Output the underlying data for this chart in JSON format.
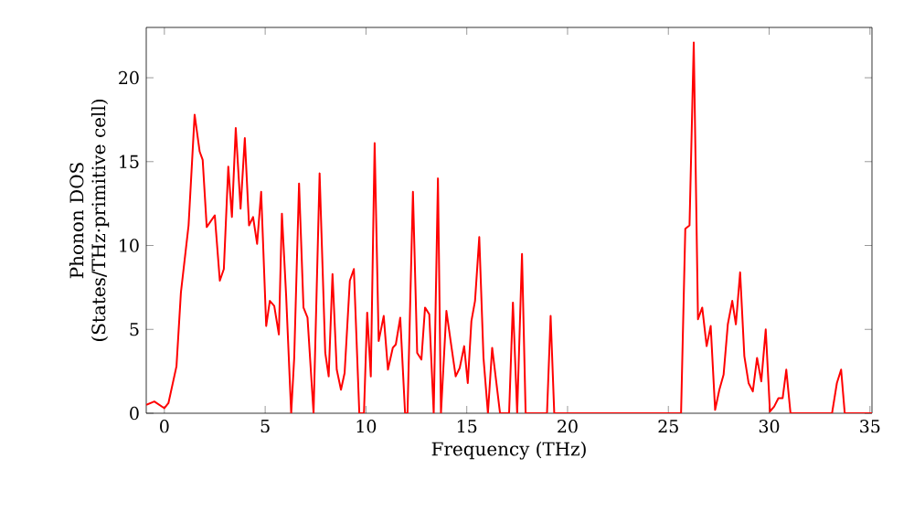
{
  "chart_data": {
    "type": "line",
    "xlabel": "Frequency (THz)",
    "ylabel": "Phonon DOS (States/THz·primitive cell)",
    "xlim": [
      -0.9,
      35.1
    ],
    "ylim": [
      0,
      23
    ],
    "xticks": [
      0,
      5,
      10,
      15,
      20,
      25,
      30,
      35
    ],
    "yticks": [
      0,
      5,
      10,
      15,
      20
    ],
    "series": [
      {
        "color": "#ff0000",
        "x": [
          -0.9,
          -0.5,
          0,
          0.2,
          0.6,
          0.82,
          1.2,
          1.5,
          1.75,
          1.9,
          2.1,
          2.5,
          2.75,
          2.95,
          3.17,
          3.35,
          3.54,
          3.78,
          3.99,
          4.2,
          4.4,
          4.6,
          4.8,
          5.05,
          5.23,
          5.45,
          5.68,
          5.83,
          6.04,
          6.29,
          6.44,
          6.68,
          6.9,
          7.1,
          7.4,
          7.7,
          7.98,
          8.15,
          8.34,
          8.55,
          8.76,
          8.94,
          9.2,
          9.4,
          9.67,
          9.9,
          10.06,
          10.24,
          10.43,
          10.63,
          10.88,
          11.09,
          11.33,
          11.48,
          11.7,
          11.94,
          12.06,
          12.33,
          12.54,
          12.75,
          12.93,
          13.14,
          13.36,
          13.57,
          13.72,
          13.99,
          14.2,
          14.45,
          14.65,
          14.87,
          15.05,
          15.23,
          15.41,
          15.62,
          15.83,
          16.05,
          16.26,
          16.47,
          16.65,
          17.1,
          17.29,
          17.5,
          17.74,
          17.92,
          18.98,
          19.16,
          19.34,
          25.63,
          25.84,
          26.05,
          26.26,
          26.47,
          26.68,
          26.9,
          27.1,
          27.32,
          27.53,
          27.74,
          27.95,
          28.17,
          28.35,
          28.56,
          28.77,
          28.98,
          29.19,
          29.4,
          29.61,
          29.83,
          30.04,
          30.25,
          30.46,
          30.67,
          30.85,
          31.06,
          33.12,
          33.36,
          33.57,
          33.75,
          35.1
        ],
        "values": [
          0.5,
          0.7,
          0.3,
          0.6,
          2.8,
          7.2,
          11.2,
          17.8,
          15.6,
          15.1,
          11.1,
          11.8,
          7.9,
          8.6,
          14.7,
          11.7,
          17.0,
          12.2,
          16.4,
          11.2,
          11.7,
          10.1,
          13.2,
          5.2,
          6.7,
          6.4,
          4.7,
          11.9,
          7.0,
          0,
          3.3,
          13.7,
          6.3,
          5.7,
          0,
          14.3,
          3.6,
          2.2,
          8.3,
          2.6,
          1.4,
          2.4,
          7.9,
          8.6,
          0,
          0,
          6.0,
          2.2,
          16.1,
          4.3,
          5.8,
          2.6,
          3.9,
          4.1,
          5.7,
          0,
          0,
          13.2,
          3.6,
          3.2,
          6.3,
          5.9,
          0,
          14.0,
          0,
          6.1,
          4.3,
          2.2,
          2.7,
          4.0,
          1.8,
          5.5,
          6.7,
          10.5,
          3.3,
          0,
          3.9,
          1.8,
          0,
          0,
          6.6,
          0,
          9.5,
          0,
          0,
          5.8,
          0,
          0,
          11.0,
          11.2,
          22.1,
          5.6,
          6.3,
          4.0,
          5.2,
          0.2,
          1.4,
          2.3,
          5.3,
          6.7,
          5.3,
          8.4,
          3.4,
          1.8,
          1.3,
          3.3,
          1.9,
          5.0,
          0.1,
          0.4,
          0.9,
          0.9,
          2.6,
          0,
          0,
          1.8,
          2.6,
          0,
          0
        ]
      }
    ]
  }
}
